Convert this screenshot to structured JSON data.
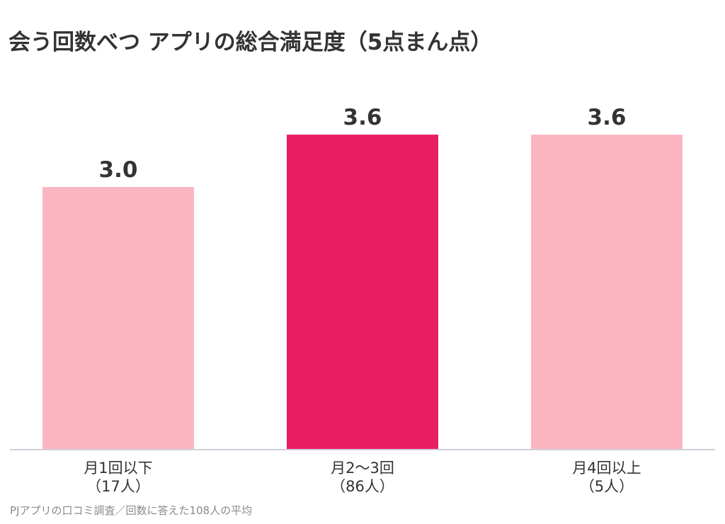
{
  "chart_data": {
    "type": "bar",
    "title": "会う回数べつ アプリの総合満足度（5点まん点）",
    "categories": [
      {
        "line1": "月1回以下",
        "line2": "（17人）"
      },
      {
        "line1": "月2〜3回",
        "line2": "（86人）"
      },
      {
        "line1": "月4回以上",
        "line2": "（5人）"
      }
    ],
    "values": [
      3.0,
      3.6,
      3.6
    ],
    "value_labels": [
      "3.0",
      "3.6",
      "3.6"
    ],
    "bar_colors": [
      "#fbb6c1",
      "#e91e63",
      "#fbb6c1"
    ],
    "ylim": [
      0,
      5
    ],
    "grid": false,
    "legend": "none",
    "xlabel": "",
    "ylabel": ""
  },
  "source_note": "PJアプリの口コミ調査／回数に答えた108人の平均",
  "colors": {
    "highlight": "#e91e63",
    "muted_bar": "#fbb6c1",
    "baseline": "#d0d0dc",
    "text": "#333333",
    "note": "#8a8a8a"
  }
}
